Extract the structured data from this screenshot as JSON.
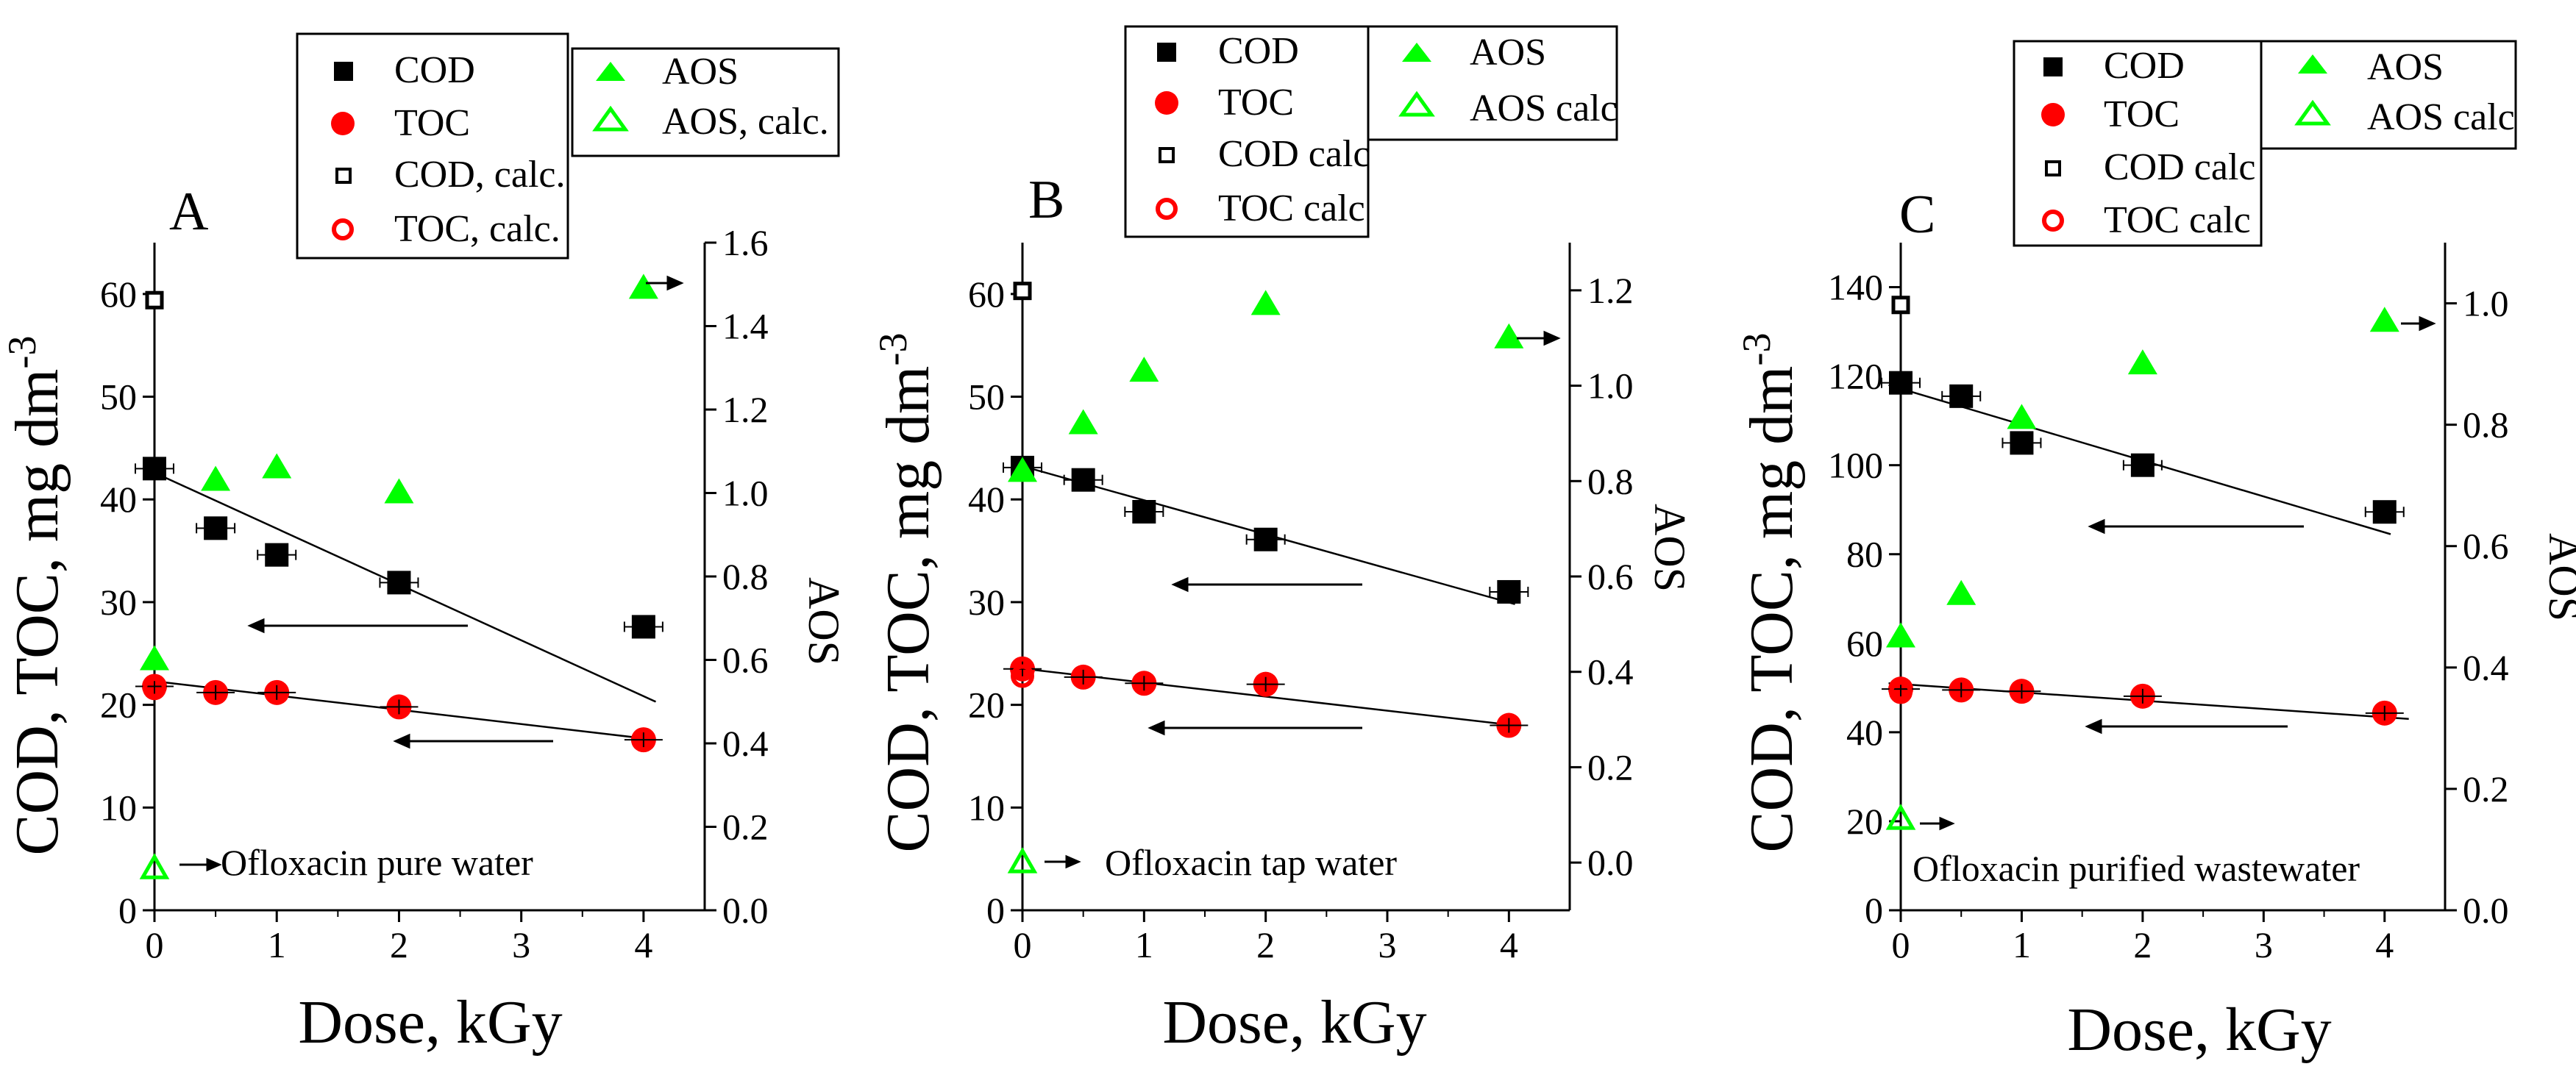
{
  "colors": {
    "cod": "#000000",
    "toc": "#ff0000",
    "aos": "#00ff00",
    "axis": "#000000"
  },
  "chart_data": [
    {
      "type": "scatter",
      "panel_label": "A",
      "annotation": "Ofloxacin pure water",
      "xlabel": "Dose, kGy",
      "ylabel_left": "COD, TOC, mg dm",
      "ylabel_left_sup": "-3",
      "ylabel_right": "AOS",
      "xlim": [
        0,
        4.5
      ],
      "ylim_left": [
        0,
        65
      ],
      "ylim_right": [
        0,
        1.6
      ],
      "xticks": [
        "0",
        "1",
        "2",
        "3",
        "4"
      ],
      "yticks_left": [
        "0",
        "10",
        "20",
        "30",
        "40",
        "50",
        "60"
      ],
      "yticks_right": [
        "0.0",
        "0.2",
        "0.4",
        "0.6",
        "0.8",
        "1.0",
        "1.2",
        "1.4",
        "1.6"
      ],
      "legend_main": [
        "COD",
        "TOC",
        "COD, calc.",
        "TOC, calc."
      ],
      "legend_aos": [
        "AOS",
        "AOS, calc."
      ],
      "series": [
        {
          "name": "COD",
          "axis": "left",
          "x": [
            0,
            0.5,
            1,
            2,
            4
          ],
          "y": [
            43.0,
            37.2,
            34.6,
            31.9,
            27.6
          ]
        },
        {
          "name": "TOC",
          "axis": "left",
          "x": [
            0,
            0.5,
            1,
            2,
            4
          ],
          "y": [
            21.8,
            21.2,
            21.2,
            19.8,
            16.6
          ]
        },
        {
          "name": "COD, calc.",
          "axis": "left",
          "x": [
            0
          ],
          "y": [
            59.4
          ]
        },
        {
          "name": "TOC, calc.",
          "axis": "left",
          "x": [
            0
          ],
          "y": [
            21.6
          ]
        },
        {
          "name": "AOS",
          "axis": "right",
          "x": [
            0,
            0.5,
            1,
            2,
            4
          ],
          "y": [
            0.6,
            1.03,
            1.06,
            1.0,
            1.49
          ]
        },
        {
          "name": "AOS, calc.",
          "axis": "right",
          "x": [
            0
          ],
          "y": [
            0.1
          ]
        }
      ],
      "fits": [
        {
          "name": "COD fit",
          "x": [
            0,
            4.1
          ],
          "y": [
            42.6,
            20.3
          ]
        },
        {
          "name": "TOC fit",
          "x": [
            0,
            4.1
          ],
          "y": [
            22.3,
            16.6
          ]
        }
      ]
    },
    {
      "type": "scatter",
      "panel_label": "B",
      "annotation": "Ofloxacin tap water",
      "xlabel": "Dose, kGy",
      "ylabel_left": "COD, TOC, mg dm",
      "ylabel_left_sup": "-3",
      "ylabel_right": "AOS",
      "xlim": [
        0,
        4.5
      ],
      "ylim_left": [
        0,
        65
      ],
      "ylim_right": [
        -0.1,
        1.3
      ],
      "xticks": [
        "0",
        "1",
        "2",
        "3",
        "4"
      ],
      "yticks_left": [
        "0",
        "10",
        "20",
        "30",
        "40",
        "50",
        "60"
      ],
      "yticks_right": [
        "0.0",
        "0.2",
        "0.4",
        "0.6",
        "0.8",
        "1.0",
        "1.2"
      ],
      "legend_main": [
        "COD",
        "TOC",
        "COD calc",
        "TOC calc"
      ],
      "legend_aos": [
        "AOS",
        "AOS calc"
      ],
      "series": [
        {
          "name": "COD",
          "axis": "left",
          "x": [
            0,
            0.5,
            1,
            2,
            4
          ],
          "y": [
            43.1,
            41.9,
            38.8,
            36.1,
            31.0
          ]
        },
        {
          "name": "TOC",
          "axis": "left",
          "x": [
            0,
            0.5,
            1,
            2,
            4
          ],
          "y": [
            23.5,
            22.7,
            22.1,
            22.0,
            18.0
          ]
        },
        {
          "name": "COD calc",
          "axis": "left",
          "x": [
            0
          ],
          "y": [
            60.3
          ]
        },
        {
          "name": "TOC calc",
          "axis": "left",
          "x": [
            0
          ],
          "y": [
            22.8
          ]
        },
        {
          "name": "AOS",
          "axis": "right",
          "x": [
            0,
            0.5,
            1,
            2,
            4
          ],
          "y": [
            0.82,
            0.92,
            1.03,
            1.17,
            1.1
          ]
        },
        {
          "name": "AOS calc",
          "axis": "right",
          "x": [
            0
          ],
          "y": [
            0.0
          ]
        }
      ],
      "fits": [
        {
          "name": "COD fit",
          "x": [
            -0.05,
            4.05
          ],
          "y": [
            43.4,
            29.8
          ]
        },
        {
          "name": "TOC fit",
          "x": [
            -0.05,
            4.05
          ],
          "y": [
            23.6,
            18.0
          ]
        }
      ]
    },
    {
      "type": "scatter",
      "panel_label": "C",
      "annotation": "Ofloxacin purified wastewater",
      "xlabel": "Dose, kGy",
      "ylabel_left": "COD, TOC, mg dm",
      "ylabel_left_sup": "-3",
      "ylabel_right": "AOS",
      "xlim": [
        0,
        4.5
      ],
      "ylim_left": [
        0,
        150
      ],
      "ylim_right": [
        0,
        1.1
      ],
      "xticks": [
        "0",
        "1",
        "2",
        "3",
        "4"
      ],
      "yticks_left": [
        "0",
        "20",
        "40",
        "60",
        "80",
        "100",
        "120",
        "140"
      ],
      "yticks_right": [
        "0.0",
        "0.2",
        "0.4",
        "0.6",
        "0.8",
        "1.0"
      ],
      "legend_main": [
        "COD",
        "TOC",
        "COD calc",
        "TOC calc"
      ],
      "legend_aos": [
        "AOS",
        "AOS calc"
      ],
      "series": [
        {
          "name": "COD",
          "axis": "left",
          "x": [
            0,
            0.5,
            1,
            2,
            4
          ],
          "y": [
            118.5,
            115.5,
            105.0,
            100.0,
            89.5
          ]
        },
        {
          "name": "TOC",
          "axis": "left",
          "x": [
            0,
            0.5,
            1,
            2,
            4
          ],
          "y": [
            49.7,
            49.5,
            49.2,
            48.1,
            44.3
          ]
        },
        {
          "name": "COD calc",
          "axis": "left",
          "x": [
            0
          ],
          "y": [
            136.0
          ]
        },
        {
          "name": "TOC calc",
          "axis": "left",
          "x": [
            0
          ],
          "y": [
            49.0
          ]
        },
        {
          "name": "AOS",
          "axis": "right",
          "x": [
            0,
            0.5,
            1,
            2,
            4
          ],
          "y": [
            0.45,
            0.52,
            0.81,
            0.9,
            0.97
          ]
        },
        {
          "name": "AOS calc",
          "axis": "right",
          "x": [
            0
          ],
          "y": [
            0.15
          ]
        }
      ],
      "fits": [
        {
          "name": "COD fit",
          "x": [
            -0.1,
            4.05
          ],
          "y": [
            118.0,
            84.5
          ]
        },
        {
          "name": "TOC fit",
          "x": [
            -0.1,
            4.2
          ],
          "y": [
            51.0,
            43.0
          ]
        }
      ]
    }
  ]
}
